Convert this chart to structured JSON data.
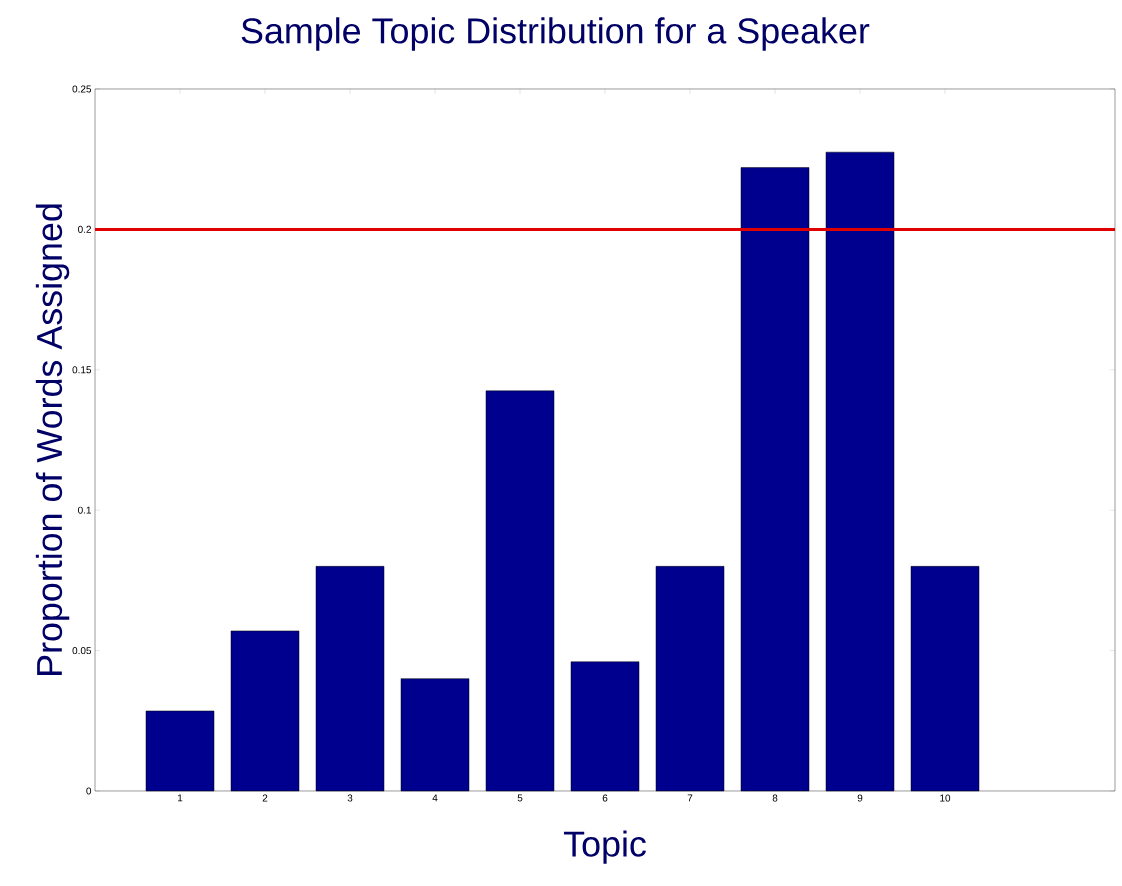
{
  "chart_data": {
    "type": "bar",
    "title": "Sample Topic Distribution for a Speaker",
    "xlabel": "Topic",
    "ylabel": "Proportion of Words Assigned",
    "x": [
      1,
      2,
      3,
      4,
      5,
      6,
      7,
      8,
      9,
      10
    ],
    "values": [
      0.0285,
      0.057,
      0.08,
      0.04,
      0.1425,
      0.046,
      0.08,
      0.222,
      0.2275,
      0.08
    ],
    "color": "#00008f",
    "xlim": [
      0,
      12
    ],
    "xticks": [
      1,
      2,
      3,
      4,
      5,
      6,
      7,
      8,
      9,
      10
    ],
    "ylim": [
      0,
      0.25
    ],
    "yticks": [
      0,
      0.05,
      0.1,
      0.15,
      0.2,
      0.25
    ],
    "ref_lines": [
      {
        "axis": "y",
        "value": 0.2,
        "color": "#e00000"
      }
    ]
  }
}
